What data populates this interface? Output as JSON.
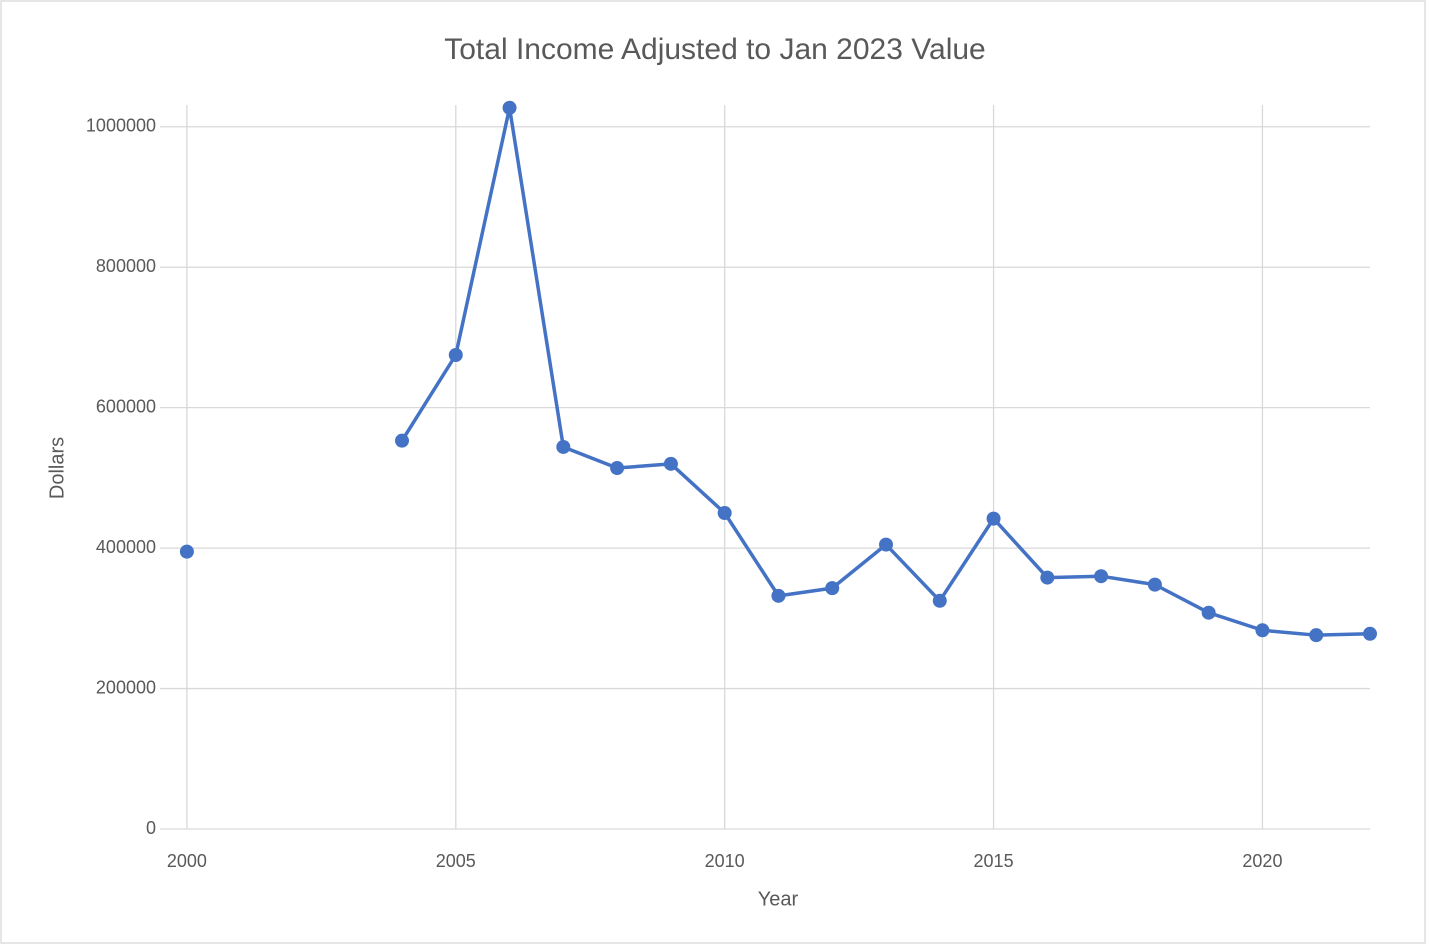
{
  "chart_data": {
    "type": "line",
    "title": "Total Income Adjusted to Jan 2023 Value",
    "x_label": "Year",
    "y_label": "Dollars",
    "x": [
      2000,
      2001,
      2002,
      2003,
      2004,
      2005,
      2006,
      2007,
      2008,
      2009,
      2010,
      2011,
      2012,
      2013,
      2014,
      2015,
      2016,
      2017,
      2018,
      2019,
      2020,
      2021,
      2022
    ],
    "series": [
      {
        "name": "Total Income",
        "color": "#4472c4",
        "values": [
          395000,
          null,
          null,
          null,
          553000,
          675000,
          1027000,
          544000,
          514000,
          520000,
          450000,
          332000,
          343000,
          405000,
          325000,
          442000,
          358000,
          360000,
          348000,
          308000,
          283000,
          276000,
          278000
        ]
      }
    ],
    "xlim": [
      1999.5,
      2022
    ],
    "xticks": [
      2000,
      2005,
      2010,
      2015,
      2020
    ],
    "ylim": [
      0,
      1031000
    ],
    "yticks": [
      0,
      200000,
      400000,
      600000,
      800000,
      1000000
    ],
    "grid": true
  }
}
